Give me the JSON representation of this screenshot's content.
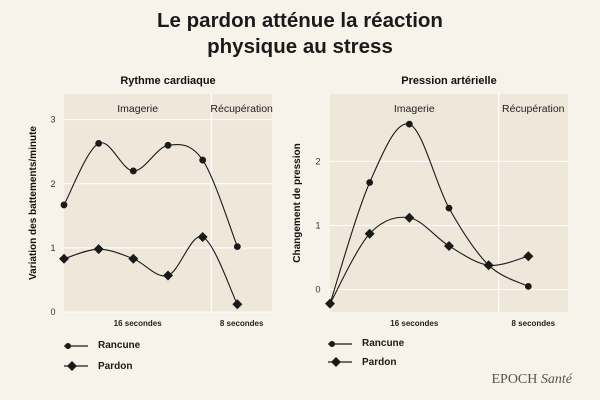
{
  "title": {
    "line1": "Le pardon atténue la réaction",
    "line2": "physique au stress"
  },
  "colors": {
    "background": "#f8f3ea",
    "plot_bg": "#efe7da",
    "grid": "#ffffff",
    "line": "#1a1a1a"
  },
  "chart_data": [
    {
      "type": "line",
      "title": "Rythme cardiaque",
      "ylabel": "Variation des battements/minute",
      "xlabel": "",
      "ylim": [
        0,
        3.4
      ],
      "xlim": [
        0,
        12
      ],
      "yticks": [
        0,
        1,
        2,
        3
      ],
      "phase_split": 8.5,
      "phases": [
        "Imagerie",
        "Récupération"
      ],
      "time_labels": [
        "16 secondes",
        "8 secondes"
      ],
      "series": [
        {
          "name": "Rancune",
          "marker": "circle",
          "x": [
            0,
            2,
            4,
            6,
            8,
            10,
            12
          ],
          "values": [
            1.67,
            2.63,
            2.2,
            2.6,
            2.37,
            1.02,
            null
          ]
        },
        {
          "name": "Pardon",
          "marker": "diamond",
          "x": [
            0,
            2,
            4,
            6,
            8,
            10,
            12
          ],
          "values": [
            0.83,
            0.98,
            0.83,
            0.57,
            1.17,
            0.12,
            null
          ]
        }
      ]
    },
    {
      "type": "line",
      "title": "Pression artérielle",
      "ylabel": "Changement de pression",
      "xlabel": "",
      "ylim": [
        -0.35,
        3.05
      ],
      "xlim": [
        0,
        12
      ],
      "yticks": [
        0,
        1,
        2
      ],
      "phase_split": 8.5,
      "phases": [
        "Imagerie",
        "Récupération"
      ],
      "time_labels": [
        "16 secondes",
        "8 secondes"
      ],
      "series": [
        {
          "name": "Rancune",
          "marker": "circle",
          "x": [
            0,
            2,
            4,
            6,
            8,
            10,
            12
          ],
          "values": [
            -0.22,
            1.67,
            2.58,
            1.27,
            0.38,
            0.05,
            null
          ]
        },
        {
          "name": "Pardon",
          "marker": "diamond",
          "x": [
            0,
            2,
            4,
            6,
            8,
            10,
            12
          ],
          "values": [
            -0.22,
            0.87,
            1.12,
            0.68,
            0.38,
            0.52,
            null
          ]
        }
      ]
    }
  ],
  "legend": [
    {
      "label": "Rancune",
      "marker": "circle"
    },
    {
      "label": "Pardon",
      "marker": "diamond"
    }
  ],
  "brand": {
    "name": "EPOCH",
    "suffix": "Santé"
  }
}
